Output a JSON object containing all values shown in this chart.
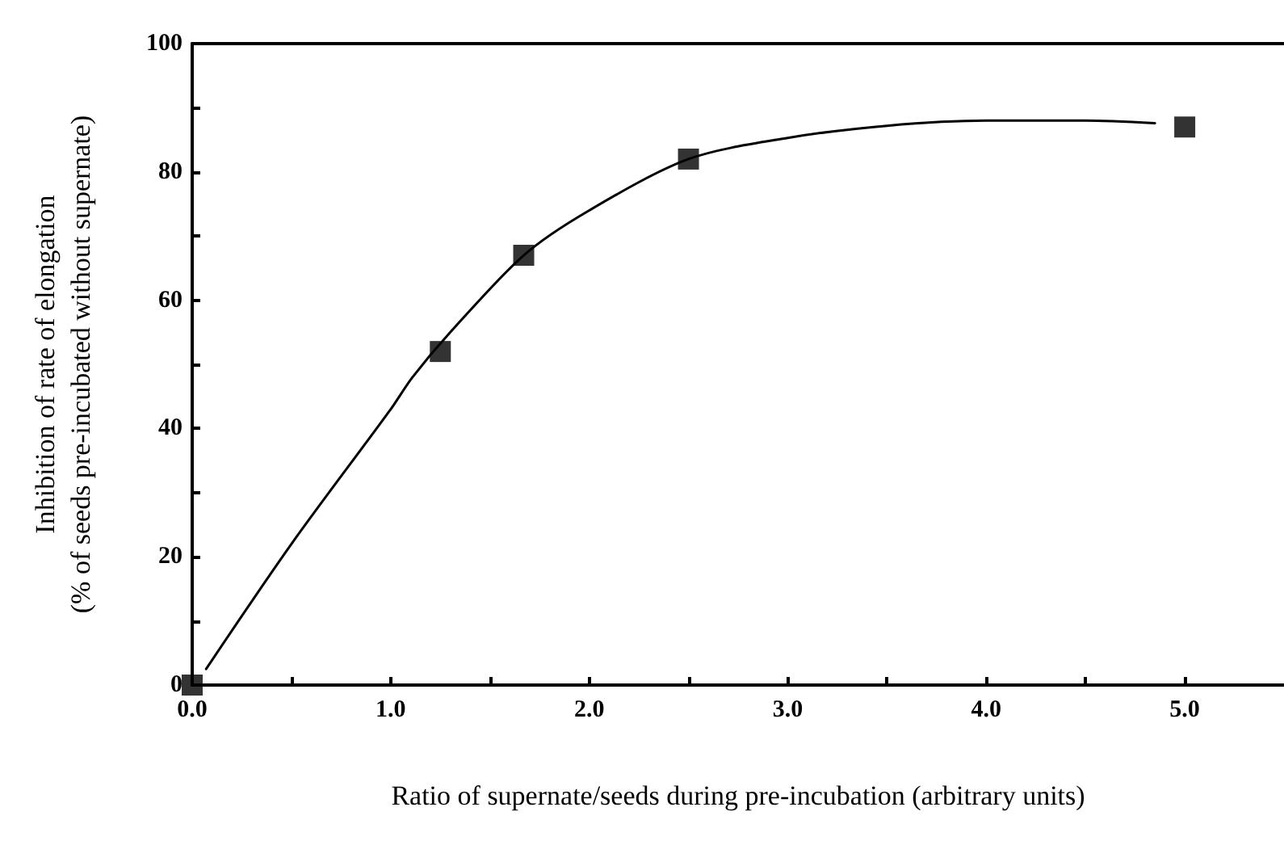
{
  "chart_data": {
    "type": "scatter",
    "xlabel": "Ratio of supernate/seeds during pre-incubation (arbitrary units)",
    "ylabel": "Inhibition of rate of elongation\n(% of seeds pre-incubated without supernate)",
    "x": [
      0,
      1.25,
      1.67,
      2.5,
      5.0
    ],
    "series": [
      {
        "color": "#000000",
        "marker": "square",
        "values": [
          0,
          52,
          67,
          82,
          87
        ]
      },
      {
        "type": "line",
        "color": "#000000",
        "marker": "none",
        "x": [
          0.07,
          0.5,
          1.0,
          1.11,
          1.3,
          1.67,
          2.0,
          2.5,
          3.0,
          3.5,
          4.0,
          4.5,
          4.85
        ],
        "values": [
          2.5,
          22,
          43,
          48,
          55,
          67,
          74,
          82,
          85.3,
          87.2,
          88,
          88,
          87.6
        ]
      }
    ],
    "xlim": [
      0,
      5.5
    ],
    "ylim": [
      0,
      100
    ],
    "xticks": [
      {
        "value": 0,
        "label": "0.0"
      },
      {
        "value": 0.5,
        "label": null
      },
      {
        "value": 1,
        "label": "1.0"
      },
      {
        "value": 1.5,
        "label": null
      },
      {
        "value": 2,
        "label": "2.0"
      },
      {
        "value": 2.5,
        "label": null
      },
      {
        "value": 3,
        "label": "3.0"
      },
      {
        "value": 3.5,
        "label": null
      },
      {
        "value": 4,
        "label": "4.0"
      },
      {
        "value": 4.5,
        "label": null
      },
      {
        "value": 5,
        "label": "5.0"
      }
    ],
    "yticks": [
      0,
      {
        "value": 10,
        "label": null
      },
      20,
      {
        "value": 30,
        "label": null
      },
      40,
      {
        "value": 50,
        "label": null
      },
      60,
      {
        "value": 70,
        "label": null
      },
      80,
      {
        "value": 90,
        "label": null
      },
      100
    ],
    "grid": false
  }
}
